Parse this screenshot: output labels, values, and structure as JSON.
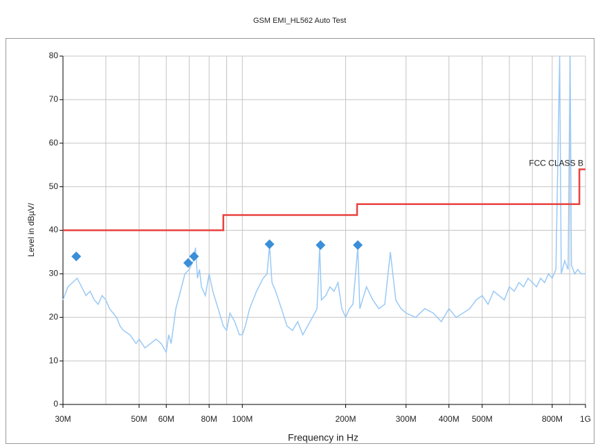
{
  "chart_data": {
    "type": "line",
    "title": "GSM EMI_HL562 Auto Test",
    "xlabel": "Frequency in Hz",
    "ylabel": "Level in dBµV/",
    "xscale": "log",
    "xlim": [
      30000000,
      1000000000
    ],
    "ylim": [
      0,
      80
    ],
    "xticks": [
      {
        "value": 30000000,
        "label": "30M"
      },
      {
        "value": 50000000,
        "label": "50M"
      },
      {
        "value": 60000000,
        "label": "60M"
      },
      {
        "value": 80000000,
        "label": "80M"
      },
      {
        "value": 100000000,
        "label": "100M"
      },
      {
        "value": 200000000,
        "label": "200M"
      },
      {
        "value": 300000000,
        "label": "300M"
      },
      {
        "value": 400000000,
        "label": "400M"
      },
      {
        "value": 500000000,
        "label": "500M"
      },
      {
        "value": 800000000,
        "label": "800M"
      },
      {
        "value": 1000000000,
        "label": "1G"
      }
    ],
    "xminor_ticks": [
      40000000,
      70000000,
      90000000,
      600000000,
      700000000,
      900000000
    ],
    "yticks": [
      0,
      10,
      20,
      30,
      40,
      50,
      60,
      70,
      80
    ],
    "grid": true,
    "series": [
      {
        "type": "line",
        "color": "#99c9f5",
        "x": [
          30000000,
          31000000,
          32000000,
          33000000,
          34000000,
          35000000,
          36000000,
          37000000,
          38000000,
          39000000,
          40000000,
          41000000,
          42000000,
          43000000,
          44000000,
          45000000,
          46000000,
          47000000,
          48000000,
          49000000,
          50000000,
          52000000,
          54000000,
          56000000,
          58000000,
          60000000,
          61000000,
          62000000,
          64000000,
          66000000,
          68000000,
          70000000,
          72000000,
          73000000,
          74000000,
          75000000,
          76000000,
          78000000,
          80000000,
          82000000,
          85000000,
          88000000,
          90000000,
          92000000,
          95000000,
          98000000,
          100000000,
          102000000,
          105000000,
          110000000,
          115000000,
          118000000,
          120000000,
          122000000,
          125000000,
          130000000,
          135000000,
          140000000,
          145000000,
          150000000,
          155000000,
          160000000,
          165000000,
          168000000,
          170000000,
          175000000,
          180000000,
          185000000,
          190000000,
          195000000,
          200000000,
          205000000,
          210000000,
          217000000,
          220000000,
          230000000,
          240000000,
          250000000,
          260000000,
          270000000,
          280000000,
          290000000,
          300000000,
          320000000,
          340000000,
          360000000,
          380000000,
          400000000,
          420000000,
          440000000,
          460000000,
          480000000,
          500000000,
          520000000,
          540000000,
          560000000,
          580000000,
          600000000,
          620000000,
          640000000,
          660000000,
          680000000,
          700000000,
          720000000,
          740000000,
          760000000,
          780000000,
          800000000,
          820000000,
          841000000,
          850000000,
          870000000,
          890000000,
          902000000,
          910000000,
          930000000,
          950000000,
          970000000,
          1000000000
        ],
        "values": [
          24,
          27,
          28,
          29,
          27,
          25,
          26,
          24,
          23,
          25,
          24,
          22,
          21,
          20,
          18,
          17,
          16.5,
          16,
          15,
          14,
          15,
          13,
          14,
          15,
          14,
          12,
          16,
          14,
          22,
          26,
          30,
          31,
          33,
          36,
          29,
          31,
          27,
          25,
          30,
          26,
          22,
          18,
          17,
          21,
          19,
          16,
          16,
          18,
          22,
          26,
          29,
          30,
          36.5,
          28,
          26,
          22,
          18,
          17,
          19,
          16,
          18,
          20,
          22,
          36,
          24,
          25,
          27,
          26,
          28,
          22,
          20,
          22,
          23,
          36,
          22,
          27,
          24,
          22,
          23,
          35,
          24,
          22,
          21,
          20,
          22,
          21,
          19,
          22,
          20,
          21,
          22,
          24,
          25,
          23,
          26,
          25,
          24,
          27,
          26,
          28,
          27,
          29,
          28,
          27,
          29,
          28,
          30,
          29,
          31,
          80,
          30,
          33,
          31,
          80,
          32,
          30,
          31,
          30,
          30
        ]
      },
      {
        "type": "step",
        "name": "FCC CLASS B",
        "color": "#e8423f",
        "x": [
          30000000,
          88000000,
          88000000,
          216000000,
          216000000,
          960000000,
          960000000,
          1000000000
        ],
        "values": [
          40,
          40,
          43.5,
          43.5,
          46,
          46,
          54,
          54
        ]
      },
      {
        "type": "scatter",
        "marker": "diamond",
        "color": "#3a8fd8",
        "x": [
          32800000,
          69500000,
          72300000,
          120000000,
          169000000,
          217000000
        ],
        "values": [
          34,
          32.5,
          34,
          36.8,
          36.6,
          36.6
        ]
      }
    ]
  }
}
